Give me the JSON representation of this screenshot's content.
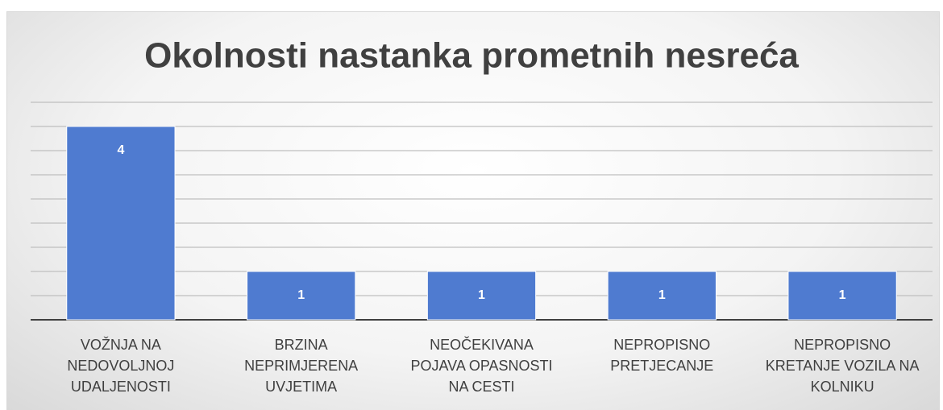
{
  "chart_data": {
    "type": "bar",
    "title": "Okolnosti nastanka prometnih nesreća",
    "categories": [
      "VOŽNJA NA NEDOVOLJNOJ UDALJENOSTI",
      "BRZINA NEPRIMJERENA UVJETIMA",
      "NEOČEKIVANA POJAVA OPASNOSTI NA CESTI",
      "NEPROPISNO PRETJECANJE",
      "NEPROPISNO KRETANJE VOZILA NA KOLNIKU"
    ],
    "values": [
      4,
      1,
      1,
      1,
      1
    ],
    "color": "#4f7bd0",
    "ylim": [
      0,
      4.5
    ],
    "yticks": [
      0,
      0.5,
      1,
      1.5,
      2,
      2.5,
      3,
      3.5,
      4,
      4.5
    ],
    "grid": true
  }
}
